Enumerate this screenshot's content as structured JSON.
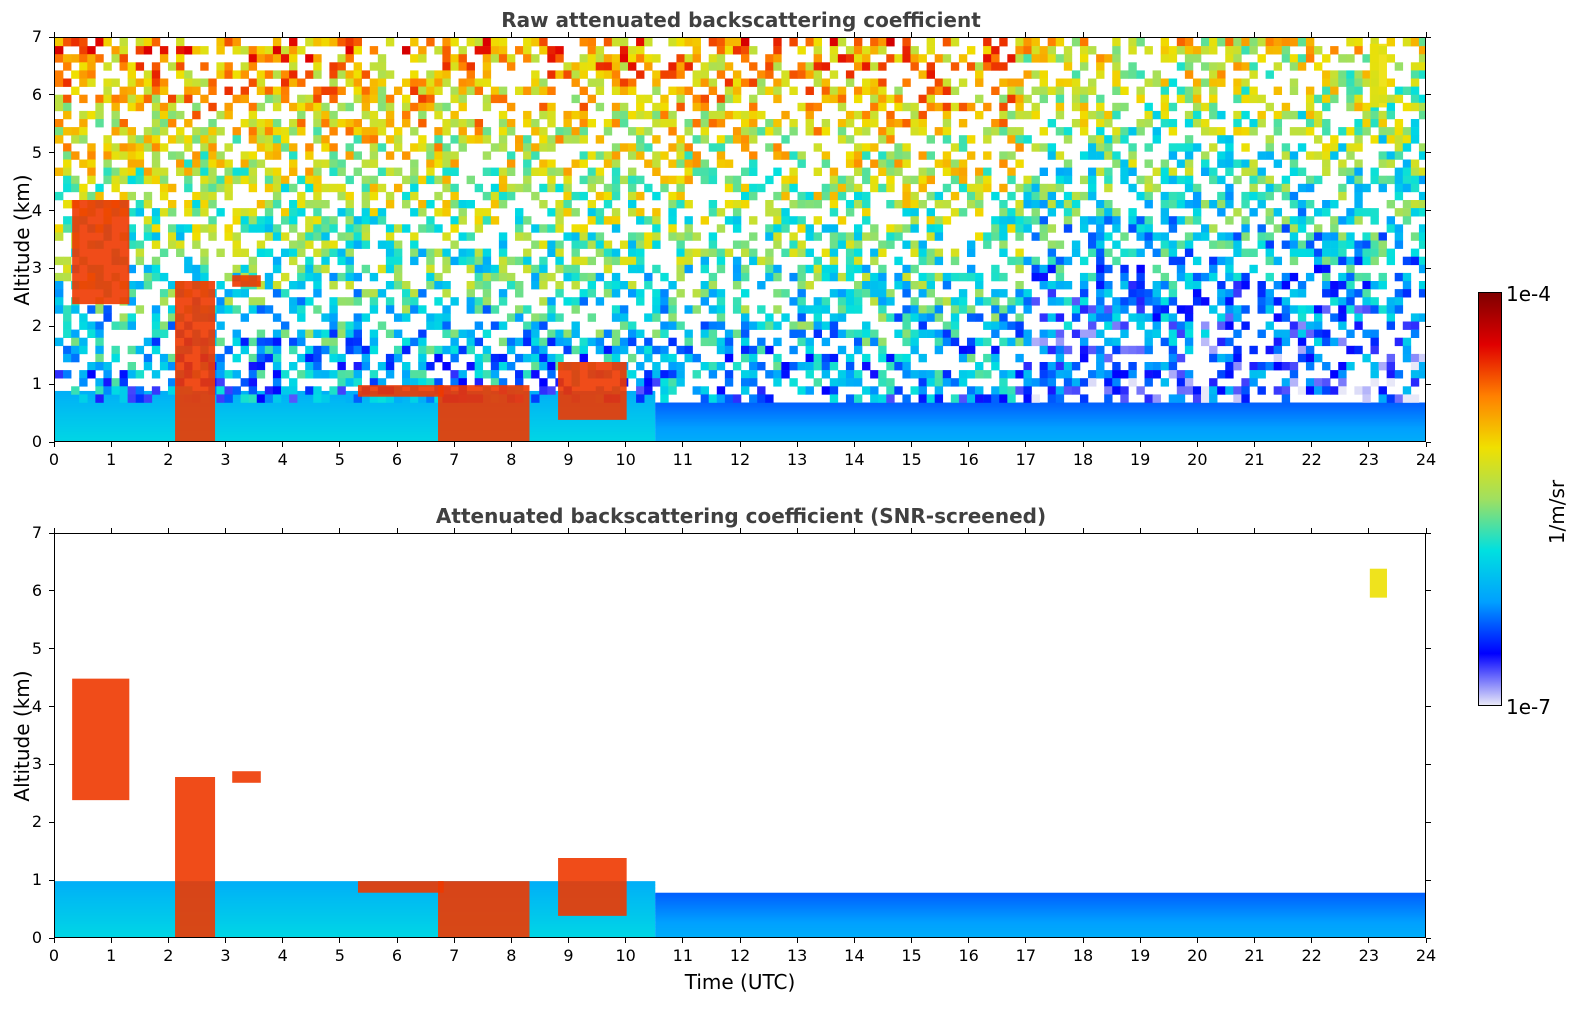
{
  "chart_data": [
    {
      "type": "heatmap",
      "title": "Raw attenuated backscattering coefficient",
      "xlabel": "",
      "ylabel": "Altitude (km)",
      "xlim": [
        0,
        24
      ],
      "ylim": [
        0,
        7
      ],
      "xticks": [
        "0",
        "1",
        "2",
        "3",
        "4",
        "5",
        "6",
        "7",
        "8",
        "9",
        "10",
        "11",
        "12",
        "13",
        "14",
        "15",
        "16",
        "17",
        "18",
        "19",
        "20",
        "21",
        "22",
        "23",
        "24"
      ],
      "yticks": [
        "0",
        "1",
        "2",
        "3",
        "4",
        "5",
        "6",
        "7"
      ],
      "screened": false,
      "features": [
        {
          "type": "boundary_layer",
          "x": [
            0,
            10.5
          ],
          "top_km": 0.9
        },
        {
          "type": "boundary_layer",
          "x": [
            10.5,
            24
          ],
          "top_km": 0.7
        },
        {
          "type": "cloud",
          "x": [
            0.3,
            1.3
          ],
          "y": [
            2.4,
            4.2
          ]
        },
        {
          "type": "cloud",
          "x": [
            2.1,
            2.8
          ],
          "y": [
            0,
            2.8
          ]
        },
        {
          "type": "cloud",
          "x": [
            3.1,
            3.6
          ],
          "y": [
            2.7,
            2.9
          ]
        },
        {
          "type": "cloud",
          "x": [
            5.3,
            6.8
          ],
          "y": [
            0.8,
            1.0
          ]
        },
        {
          "type": "cloud",
          "x": [
            6.7,
            8.3
          ],
          "y": [
            0,
            1.0
          ]
        },
        {
          "type": "cloud",
          "x": [
            8.8,
            10
          ],
          "y": [
            0.4,
            1.4
          ]
        },
        {
          "type": "cloud",
          "x": [
            23,
            23.3
          ],
          "y": [
            5.8,
            6.9
          ]
        }
      ]
    },
    {
      "type": "heatmap",
      "title": "Attenuated backscattering coefficient (SNR-screened)",
      "xlabel": "Time (UTC)",
      "ylabel": "Altitude (km)",
      "xlim": [
        0,
        24
      ],
      "ylim": [
        0,
        7
      ],
      "xticks": [
        "0",
        "1",
        "2",
        "3",
        "4",
        "5",
        "6",
        "7",
        "8",
        "9",
        "10",
        "11",
        "12",
        "13",
        "14",
        "15",
        "16",
        "17",
        "18",
        "19",
        "20",
        "21",
        "22",
        "23",
        "24"
      ],
      "yticks": [
        "0",
        "1",
        "2",
        "3",
        "4",
        "5",
        "6",
        "7"
      ],
      "screened": true,
      "features": [
        {
          "type": "boundary_layer",
          "x": [
            0,
            10.5
          ],
          "top_km": 1.0
        },
        {
          "type": "boundary_layer",
          "x": [
            10.5,
            24
          ],
          "top_km": 0.8
        },
        {
          "type": "cloud",
          "x": [
            0.3,
            1.3
          ],
          "y": [
            2.4,
            4.5
          ]
        },
        {
          "type": "cloud",
          "x": [
            2.1,
            2.8
          ],
          "y": [
            0,
            2.8
          ]
        },
        {
          "type": "cloud",
          "x": [
            3.1,
            3.6
          ],
          "y": [
            2.7,
            2.9
          ]
        },
        {
          "type": "cloud",
          "x": [
            5.3,
            6.8
          ],
          "y": [
            0.8,
            1.0
          ]
        },
        {
          "type": "cloud",
          "x": [
            6.7,
            8.3
          ],
          "y": [
            0,
            1.0
          ]
        },
        {
          "type": "cloud",
          "x": [
            8.8,
            10
          ],
          "y": [
            0.4,
            1.4
          ]
        },
        {
          "type": "cloud",
          "x": [
            23,
            23.3
          ],
          "y": [
            5.9,
            6.4
          ]
        }
      ]
    }
  ],
  "colorbar": {
    "label": "1/m/sr",
    "max_label": "1e-4",
    "min_label": "1e-7",
    "scale": "log",
    "colormap": [
      "#e8e8f8",
      "#0000ff",
      "#00a0ff",
      "#00e0e0",
      "#a0e060",
      "#f0e000",
      "#ff8000",
      "#e00000",
      "#800000"
    ]
  }
}
